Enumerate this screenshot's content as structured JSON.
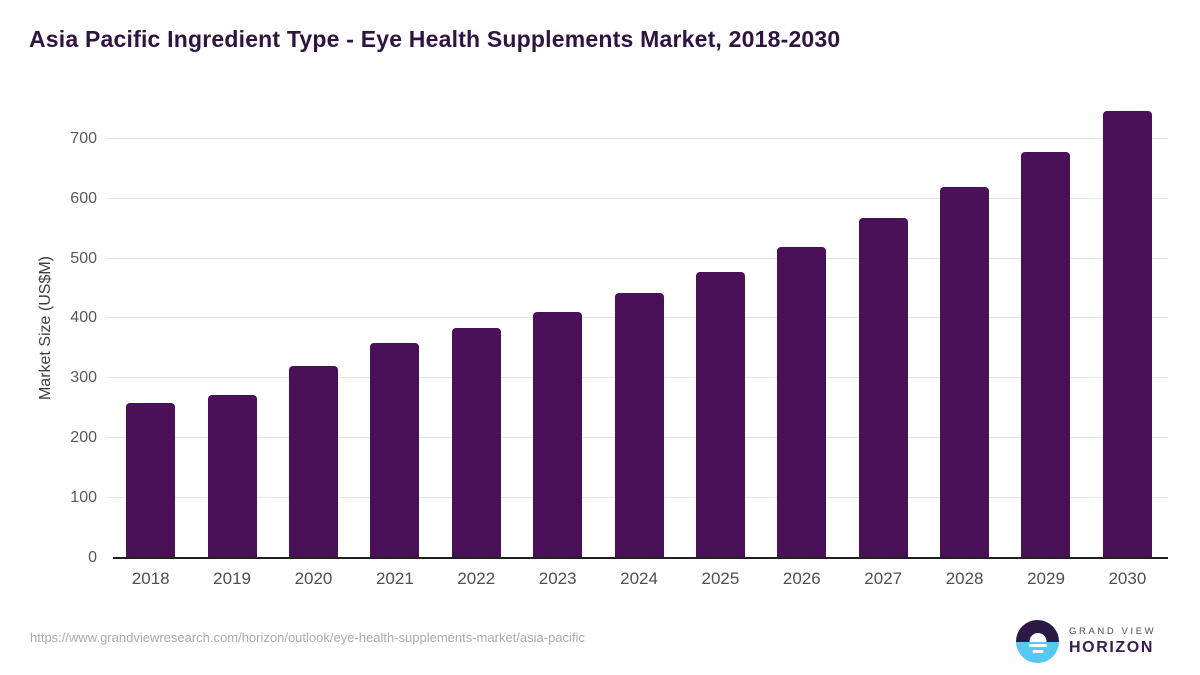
{
  "header": {
    "title": "Asia Pacific Ingredient Type - Eye Health Supplements Market, 2018-2030"
  },
  "chart_data": {
    "type": "bar",
    "title": "Asia Pacific Ingredient Type - Eye Health Supplements Market, 2018-2030",
    "categories": [
      "2018",
      "2019",
      "2020",
      "2021",
      "2022",
      "2023",
      "2024",
      "2025",
      "2026",
      "2027",
      "2028",
      "2029",
      "2030"
    ],
    "values": [
      258,
      272,
      320,
      359,
      384,
      410,
      443,
      478,
      520,
      568,
      619,
      678,
      746
    ],
    "xlabel": "",
    "ylabel": "Market Size (US$M)",
    "ylim": [
      0,
      768
    ],
    "yticks": [
      0,
      100,
      200,
      300,
      400,
      500,
      600,
      700
    ],
    "grid": "horizontal",
    "legend": "none",
    "bar_color": "#4a1159"
  },
  "footer": {
    "source_url": "https://www.grandviewresearch.com/horizon/outlook/eye-health-supplements-market/asia-pacific"
  },
  "logo": {
    "line1": "GRAND VIEW",
    "line2": "HORIZON",
    "icon_top_color": "#2a1a43",
    "icon_bottom_color": "#57c7f3"
  },
  "colors": {
    "title": "#2f1440",
    "bar": "#4a1159",
    "axis_line": "#1f1f1f",
    "gridline": "#e6e6e6",
    "tick_label": "#595959",
    "x_label": "#4f4f4f",
    "url_text": "#ababab"
  }
}
